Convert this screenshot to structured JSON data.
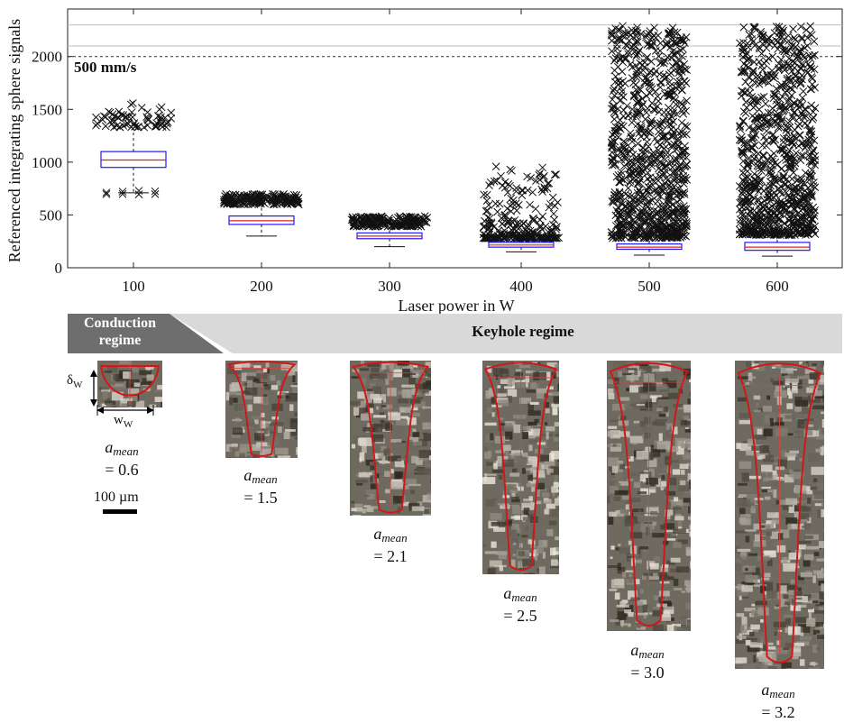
{
  "chart_data": {
    "type": "boxplot",
    "xlabel": "Laser power in W",
    "ylabel": "Referenced integrating sphere signals",
    "annotation": "500 mm/s",
    "ylim": [
      0,
      2450
    ],
    "yticks": [
      0,
      500,
      1000,
      1500,
      2000
    ],
    "grid": false,
    "reference_lines": [
      2000,
      2100,
      2300
    ],
    "categories": [
      "100",
      "200",
      "300",
      "400",
      "500",
      "600"
    ],
    "boxes": [
      {
        "x": "100",
        "q1": 950,
        "median": 1020,
        "q3": 1100,
        "whisker_low": 710,
        "whisker_high": 1330,
        "outliers_low": [
          700,
          720
        ],
        "outliers_high_range": [
          1330,
          1560
        ],
        "outlier_density": "medium"
      },
      {
        "x": "200",
        "q1": 410,
        "median": 445,
        "q3": 490,
        "whisker_low": 300,
        "whisker_high": 600,
        "outliers_high_range": [
          600,
          700
        ],
        "outlier_density": "dense"
      },
      {
        "x": "300",
        "q1": 275,
        "median": 300,
        "q3": 330,
        "whisker_low": 200,
        "whisker_high": 390,
        "outliers_high_range": [
          390,
          490
        ],
        "outlier_density": "dense"
      },
      {
        "x": "400",
        "q1": 195,
        "median": 215,
        "q3": 240,
        "whisker_low": 150,
        "whisker_high": 280,
        "outliers_high_range": [
          280,
          960
        ],
        "outlier_density": "dense-low"
      },
      {
        "x": "500",
        "q1": 175,
        "median": 195,
        "q3": 225,
        "whisker_low": 120,
        "whisker_high": 280,
        "outliers_high_range": [
          280,
          2290
        ],
        "outlier_density": "very-dense"
      },
      {
        "x": "600",
        "q1": 165,
        "median": 195,
        "q3": 240,
        "whisker_low": 110,
        "whisker_high": 310,
        "outliers_high_range": [
          310,
          2290
        ],
        "outlier_density": "very-dense"
      }
    ],
    "colors": {
      "box": "#1a1aff",
      "median": "#e02020",
      "marker": "#111111",
      "dashed_line": "#333333",
      "ref_lines": "#bdbdbd"
    }
  },
  "regimes": {
    "conduction_label": "Conduction\nregime",
    "keyhole_label": "Keyhole regime",
    "colors": {
      "conduction": "#6e6e6e",
      "keyhole": "#d9d9d9"
    }
  },
  "micrographs": [
    {
      "power": "100",
      "a_symbol": "a",
      "a_sub": "mean",
      "value": "= 0.6"
    },
    {
      "power": "200",
      "a_symbol": "a",
      "a_sub": "mean",
      "value": "= 1.5"
    },
    {
      "power": "300",
      "a_symbol": "a",
      "a_sub": "mean",
      "value": "= 2.1"
    },
    {
      "power": "400",
      "a_symbol": "a",
      "a_sub": "mean",
      "value": "= 2.5"
    },
    {
      "power": "500",
      "a_symbol": "a",
      "a_sub": "mean",
      "value": "= 3.0"
    },
    {
      "power": "600",
      "a_symbol": "a",
      "a_sub": "mean",
      "value": "= 3.2"
    }
  ],
  "dimension_labels": {
    "depth": "δW",
    "width": "wW"
  },
  "scalebar": {
    "label": "100 µm"
  }
}
